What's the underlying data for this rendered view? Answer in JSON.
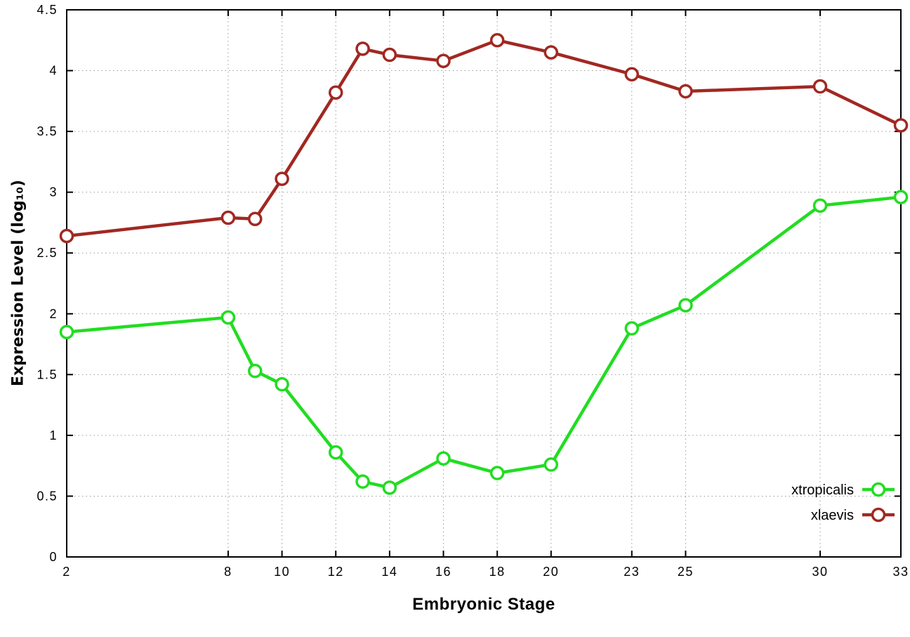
{
  "chart_data": {
    "type": "line",
    "title": "",
    "xlabel": "Embryonic Stage",
    "ylabel": "Expression Level (log₁₀)",
    "xlim": [
      2,
      33
    ],
    "ylim": [
      0,
      4.5
    ],
    "x_ticks": [
      2,
      8,
      10,
      12,
      14,
      16,
      18,
      20,
      23,
      25,
      30,
      33
    ],
    "y_ticks": [
      0,
      0.5,
      1,
      1.5,
      2,
      2.5,
      3,
      3.5,
      4,
      4.5
    ],
    "grid": true,
    "grid_color": "#9a9a9a",
    "border_color": "#000000",
    "marker": "open-circle",
    "legend_position": "bottom-right",
    "series": [
      {
        "name": "xtropicalis",
        "color": "#21dd21",
        "x": [
          2,
          8,
          9,
          10,
          12,
          13,
          14,
          16,
          18,
          20,
          23,
          25,
          30,
          33
        ],
        "y": [
          1.85,
          1.97,
          1.53,
          1.42,
          0.86,
          0.62,
          0.57,
          0.81,
          0.69,
          0.76,
          1.88,
          2.07,
          2.89,
          2.96
        ]
      },
      {
        "name": "xlaevis",
        "color": "#a12822",
        "x": [
          2,
          8,
          9,
          10,
          12,
          13,
          14,
          16,
          18,
          20,
          23,
          25,
          30,
          33
        ],
        "y": [
          2.64,
          2.79,
          2.78,
          3.11,
          3.82,
          4.18,
          4.13,
          4.08,
          4.25,
          4.15,
          3.97,
          3.83,
          3.87,
          3.55
        ]
      }
    ]
  }
}
